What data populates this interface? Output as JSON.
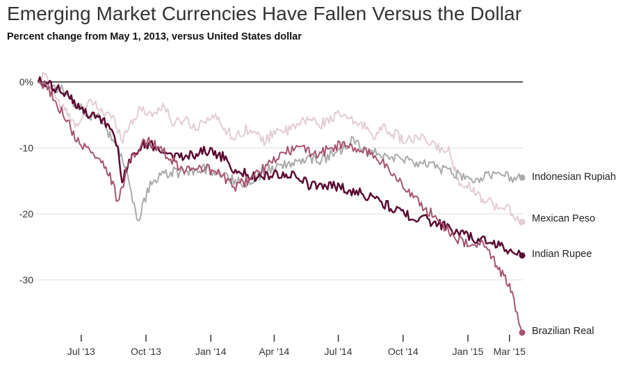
{
  "title": "Emerging Market Currencies Have Fallen Versus the Dollar",
  "subtitle": "Percent change from May 1, 2013, versus United States dollar",
  "chart_data": {
    "type": "line",
    "x_unit": "date",
    "xlim": [
      "2013-05-01",
      "2015-03-20"
    ],
    "ylim": [
      -38,
      0
    ],
    "y_ticks": [
      {
        "value": 0,
        "label": "0%"
      },
      {
        "value": -10,
        "label": "-10"
      },
      {
        "value": -20,
        "label": "-20"
      },
      {
        "value": -30,
        "label": "-30"
      }
    ],
    "x_ticks": [
      {
        "date": "2013-07-01",
        "label": "Jul '13"
      },
      {
        "date": "2013-10-01",
        "label": "Oct '13"
      },
      {
        "date": "2014-01-01",
        "label": "Jan '14"
      },
      {
        "date": "2014-04-01",
        "label": "Apr '14"
      },
      {
        "date": "2014-07-01",
        "label": "Jul '14"
      },
      {
        "date": "2014-10-01",
        "label": "Oct '14"
      },
      {
        "date": "2015-01-01",
        "label": "Jan '15"
      },
      {
        "date": "2015-03-01",
        "label": "Mar '15"
      }
    ],
    "grid": true,
    "series": [
      {
        "name": "Mexican Peso",
        "color": "#e3ccd3",
        "width": 2,
        "points": [
          [
            "2013-05-01",
            0
          ],
          [
            "2013-05-10",
            1.2
          ],
          [
            "2013-05-20",
            -1.0
          ],
          [
            "2013-06-01",
            -3.5
          ],
          [
            "2013-06-10",
            -4.5
          ],
          [
            "2013-06-20",
            -6.5
          ],
          [
            "2013-07-01",
            -5.5
          ],
          [
            "2013-07-15",
            -3.0
          ],
          [
            "2013-08-01",
            -4.5
          ],
          [
            "2013-08-15",
            -5.5
          ],
          [
            "2013-08-29",
            -8.5
          ],
          [
            "2013-09-10",
            -6.0
          ],
          [
            "2013-09-25",
            -4.0
          ],
          [
            "2013-10-10",
            -5.0
          ],
          [
            "2013-10-25",
            -3.5
          ],
          [
            "2013-11-10",
            -6.5
          ],
          [
            "2013-11-25",
            -5.5
          ],
          [
            "2013-12-10",
            -7.0
          ],
          [
            "2013-12-25",
            -5.5
          ],
          [
            "2014-01-10",
            -5.5
          ],
          [
            "2014-01-25",
            -7.5
          ],
          [
            "2014-02-05",
            -8.5
          ],
          [
            "2014-02-20",
            -7.0
          ],
          [
            "2014-03-05",
            -8.0
          ],
          [
            "2014-03-20",
            -9.0
          ],
          [
            "2014-04-05",
            -7.0
          ],
          [
            "2014-04-20",
            -7.5
          ],
          [
            "2014-05-05",
            -6.5
          ],
          [
            "2014-05-20",
            -5.5
          ],
          [
            "2014-06-05",
            -6.5
          ],
          [
            "2014-06-20",
            -5.5
          ],
          [
            "2014-07-05",
            -5.0
          ],
          [
            "2014-07-20",
            -6.0
          ],
          [
            "2014-08-05",
            -6.5
          ],
          [
            "2014-08-20",
            -8.0
          ],
          [
            "2014-09-05",
            -7.0
          ],
          [
            "2014-09-20",
            -8.0
          ],
          [
            "2014-10-05",
            -9.0
          ],
          [
            "2014-10-20",
            -8.5
          ],
          [
            "2014-11-05",
            -9.0
          ],
          [
            "2014-11-20",
            -10.0
          ],
          [
            "2014-12-05",
            -10.5
          ],
          [
            "2014-12-12",
            -13.0
          ],
          [
            "2014-12-20",
            -15.0
          ],
          [
            "2015-01-05",
            -16.0
          ],
          [
            "2015-01-20",
            -17.5
          ],
          [
            "2015-02-01",
            -18.0
          ],
          [
            "2015-02-15",
            -19.5
          ],
          [
            "2015-03-01",
            -19.0
          ],
          [
            "2015-03-10",
            -21.0
          ],
          [
            "2015-03-19",
            -21.2
          ]
        ]
      },
      {
        "name": "Indonesian Rupiah",
        "color": "#aaaaaa",
        "width": 2,
        "points": [
          [
            "2013-05-01",
            0
          ],
          [
            "2013-05-10",
            -0.5
          ],
          [
            "2013-05-20",
            -1.2
          ],
          [
            "2013-06-01",
            -1.0
          ],
          [
            "2013-06-10",
            -2.0
          ],
          [
            "2013-06-20",
            -3.0
          ],
          [
            "2013-07-01",
            -4.0
          ],
          [
            "2013-07-15",
            -5.0
          ],
          [
            "2013-07-25",
            -5.5
          ],
          [
            "2013-08-05",
            -7.0
          ],
          [
            "2013-08-15",
            -9.0
          ],
          [
            "2013-08-25",
            -11.0
          ],
          [
            "2013-09-05",
            -14.5
          ],
          [
            "2013-09-12",
            -18.0
          ],
          [
            "2013-09-20",
            -21.8
          ],
          [
            "2013-09-26",
            -19.0
          ],
          [
            "2013-10-05",
            -16.0
          ],
          [
            "2013-10-20",
            -14.5
          ],
          [
            "2013-11-05",
            -13.5
          ],
          [
            "2013-11-20",
            -14.0
          ],
          [
            "2013-12-05",
            -13.5
          ],
          [
            "2013-12-20",
            -13.0
          ],
          [
            "2014-01-05",
            -13.5
          ],
          [
            "2014-01-20",
            -14.0
          ],
          [
            "2014-02-05",
            -15.0
          ],
          [
            "2014-02-20",
            -15.5
          ],
          [
            "2014-03-05",
            -14.5
          ],
          [
            "2014-03-20",
            -13.5
          ],
          [
            "2014-04-05",
            -13.0
          ],
          [
            "2014-04-20",
            -12.5
          ],
          [
            "2014-05-05",
            -12.0
          ],
          [
            "2014-05-20",
            -11.5
          ],
          [
            "2014-06-05",
            -12.0
          ],
          [
            "2014-06-20",
            -11.0
          ],
          [
            "2014-07-05",
            -10.5
          ],
          [
            "2014-07-20",
            -9.0
          ],
          [
            "2014-08-05",
            -10.0
          ],
          [
            "2014-08-20",
            -10.5
          ],
          [
            "2014-09-05",
            -11.0
          ],
          [
            "2014-09-20",
            -11.5
          ],
          [
            "2014-10-05",
            -12.0
          ],
          [
            "2014-10-20",
            -12.5
          ],
          [
            "2014-11-05",
            -12.5
          ],
          [
            "2014-11-20",
            -13.0
          ],
          [
            "2014-12-05",
            -13.5
          ],
          [
            "2014-12-15",
            -14.0
          ],
          [
            "2015-01-01",
            -14.5
          ],
          [
            "2015-01-15",
            -15.0
          ],
          [
            "2015-02-01",
            -14.0
          ],
          [
            "2015-02-15",
            -13.5
          ],
          [
            "2015-03-01",
            -14.5
          ],
          [
            "2015-03-10",
            -14.8
          ],
          [
            "2015-03-19",
            -14.5
          ]
        ]
      },
      {
        "name": "Indian Rupee",
        "color": "#5b0a32",
        "width": 2.5,
        "points": [
          [
            "2013-05-01",
            0
          ],
          [
            "2013-05-15",
            -0.5
          ],
          [
            "2013-05-25",
            -1.0
          ],
          [
            "2013-06-05",
            -1.5
          ],
          [
            "2013-06-15",
            -2.0
          ],
          [
            "2013-06-25",
            -3.5
          ],
          [
            "2013-07-05",
            -4.5
          ],
          [
            "2013-07-15",
            -5.5
          ],
          [
            "2013-07-25",
            -5.0
          ],
          [
            "2013-08-05",
            -6.5
          ],
          [
            "2013-08-15",
            -8.0
          ],
          [
            "2013-08-22",
            -10.5
          ],
          [
            "2013-08-28",
            -14.5
          ],
          [
            "2013-09-05",
            -13.0
          ],
          [
            "2013-09-15",
            -10.5
          ],
          [
            "2013-09-25",
            -9.5
          ],
          [
            "2013-10-05",
            -9.5
          ],
          [
            "2013-10-20",
            -10.0
          ],
          [
            "2013-11-05",
            -11.0
          ],
          [
            "2013-11-20",
            -11.5
          ],
          [
            "2013-12-05",
            -11.0
          ],
          [
            "2013-12-20",
            -10.5
          ],
          [
            "2014-01-05",
            -10.5
          ],
          [
            "2014-01-20",
            -11.5
          ],
          [
            "2014-02-05",
            -13.5
          ],
          [
            "2014-02-20",
            -14.0
          ],
          [
            "2014-03-05",
            -14.5
          ],
          [
            "2014-03-20",
            -14.0
          ],
          [
            "2014-04-05",
            -14.0
          ],
          [
            "2014-04-20",
            -14.0
          ],
          [
            "2014-05-05",
            -14.5
          ],
          [
            "2014-05-20",
            -15.5
          ],
          [
            "2014-06-05",
            -16.0
          ],
          [
            "2014-06-20",
            -15.5
          ],
          [
            "2014-07-05",
            -16.0
          ],
          [
            "2014-07-20",
            -16.5
          ],
          [
            "2014-08-05",
            -17.0
          ],
          [
            "2014-08-20",
            -17.5
          ],
          [
            "2014-09-05",
            -18.5
          ],
          [
            "2014-09-20",
            -19.5
          ],
          [
            "2014-10-05",
            -20.0
          ],
          [
            "2014-10-20",
            -20.5
          ],
          [
            "2014-11-05",
            -21.0
          ],
          [
            "2014-11-20",
            -21.5
          ],
          [
            "2014-12-05",
            -22.0
          ],
          [
            "2014-12-20",
            -23.0
          ],
          [
            "2015-01-05",
            -23.5
          ],
          [
            "2015-01-20",
            -24.0
          ],
          [
            "2015-02-05",
            -24.5
          ],
          [
            "2015-02-20",
            -25.0
          ],
          [
            "2015-03-05",
            -25.5
          ],
          [
            "2015-03-19",
            -26.3
          ]
        ]
      },
      {
        "name": "Brazilian Real",
        "color": "#a5536f",
        "width": 2,
        "points": [
          [
            "2013-05-01",
            0
          ],
          [
            "2013-05-10",
            -0.5
          ],
          [
            "2013-05-20",
            -2.0
          ],
          [
            "2013-06-01",
            -4.0
          ],
          [
            "2013-06-10",
            -5.5
          ],
          [
            "2013-06-20",
            -8.0
          ],
          [
            "2013-07-01",
            -9.5
          ],
          [
            "2013-07-15",
            -10.5
          ],
          [
            "2013-07-25",
            -11.5
          ],
          [
            "2013-08-05",
            -13.0
          ],
          [
            "2013-08-15",
            -15.5
          ],
          [
            "2013-08-22",
            -18.5
          ],
          [
            "2013-08-28",
            -16.0
          ],
          [
            "2013-09-05",
            -13.0
          ],
          [
            "2013-09-15",
            -11.0
          ],
          [
            "2013-09-25",
            -9.5
          ],
          [
            "2013-10-05",
            -9.0
          ],
          [
            "2013-10-20",
            -10.0
          ],
          [
            "2013-11-05",
            -11.5
          ],
          [
            "2013-11-20",
            -13.0
          ],
          [
            "2013-12-05",
            -13.5
          ],
          [
            "2013-12-20",
            -13.0
          ],
          [
            "2014-01-05",
            -13.5
          ],
          [
            "2014-01-20",
            -14.5
          ],
          [
            "2014-02-05",
            -16.0
          ],
          [
            "2014-02-20",
            -15.0
          ],
          [
            "2014-03-05",
            -14.0
          ],
          [
            "2014-03-20",
            -13.0
          ],
          [
            "2014-04-05",
            -11.5
          ],
          [
            "2014-04-20",
            -10.5
          ],
          [
            "2014-05-05",
            -10.0
          ],
          [
            "2014-05-20",
            -10.5
          ],
          [
            "2014-06-05",
            -11.0
          ],
          [
            "2014-06-20",
            -10.0
          ],
          [
            "2014-07-05",
            -9.5
          ],
          [
            "2014-07-20",
            -10.0
          ],
          [
            "2014-08-05",
            -10.5
          ],
          [
            "2014-08-20",
            -11.0
          ],
          [
            "2014-09-05",
            -12.5
          ],
          [
            "2014-09-20",
            -14.5
          ],
          [
            "2014-10-05",
            -16.0
          ],
          [
            "2014-10-20",
            -18.0
          ],
          [
            "2014-11-05",
            -19.5
          ],
          [
            "2014-11-20",
            -21.0
          ],
          [
            "2014-12-05",
            -22.5
          ],
          [
            "2014-12-20",
            -24.0
          ],
          [
            "2015-01-05",
            -25.0
          ],
          [
            "2015-01-20",
            -24.5
          ],
          [
            "2015-02-05",
            -26.5
          ],
          [
            "2015-02-15",
            -28.5
          ],
          [
            "2015-02-25",
            -30.0
          ],
          [
            "2015-03-05",
            -32.5
          ],
          [
            "2015-03-12",
            -35.5
          ],
          [
            "2015-03-19",
            -38.0
          ]
        ]
      }
    ]
  }
}
